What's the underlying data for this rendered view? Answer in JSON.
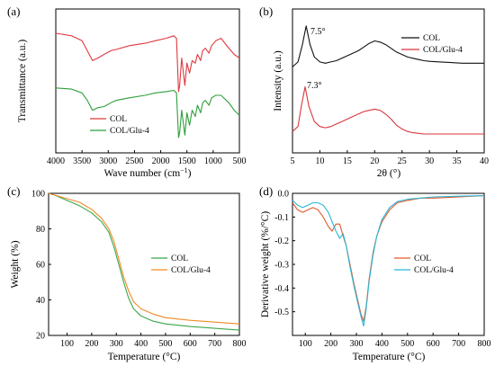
{
  "chart_data": [
    {
      "panel": "(a)",
      "type": "line",
      "xlabel": "Wave number (cm⁻¹)",
      "xlabel_base": "Wave number (cm",
      "xlabel_sup": "−1",
      "xlabel_close": ")",
      "ylabel": "Transmittance (a.u.)",
      "xlim": [
        4000,
        500
      ],
      "xticks": [
        "4000",
        "3500",
        "3000",
        "2500",
        "2000",
        "1500",
        "1000",
        "500"
      ],
      "legend": "bottom-left",
      "series": [
        {
          "name": "COL",
          "color": "#e0393e",
          "x": [
            4000,
            3700,
            3500,
            3400,
            3300,
            3200,
            3080,
            2950,
            2850,
            2600,
            2300,
            2100,
            1900,
            1750,
            1700,
            1660,
            1640,
            1600,
            1540,
            1500,
            1450,
            1400,
            1340,
            1300,
            1240,
            1200,
            1150,
            1080,
            1030,
            950,
            850,
            700,
            600,
            500
          ],
          "y": [
            0.92,
            0.9,
            0.86,
            0.78,
            0.7,
            0.72,
            0.75,
            0.78,
            0.79,
            0.82,
            0.84,
            0.86,
            0.88,
            0.9,
            0.88,
            0.45,
            0.5,
            0.72,
            0.5,
            0.68,
            0.6,
            0.7,
            0.68,
            0.75,
            0.7,
            0.78,
            0.8,
            0.76,
            0.82,
            0.86,
            0.88,
            0.8,
            0.75,
            0.72
          ]
        },
        {
          "name": "COL/Glu-4",
          "color": "#2e9e3a",
          "x": [
            4000,
            3700,
            3500,
            3400,
            3300,
            3200,
            3080,
            2950,
            2850,
            2600,
            2300,
            2100,
            1900,
            1750,
            1700,
            1660,
            1640,
            1600,
            1540,
            1500,
            1450,
            1400,
            1340,
            1300,
            1240,
            1200,
            1150,
            1080,
            1030,
            950,
            850,
            700,
            600,
            500
          ],
          "y": [
            0.48,
            0.47,
            0.44,
            0.38,
            0.3,
            0.32,
            0.33,
            0.36,
            0.38,
            0.4,
            0.42,
            0.44,
            0.45,
            0.46,
            0.44,
            0.08,
            0.12,
            0.3,
            0.1,
            0.28,
            0.18,
            0.3,
            0.25,
            0.34,
            0.28,
            0.36,
            0.38,
            0.34,
            0.4,
            0.42,
            0.42,
            0.36,
            0.3,
            0.26
          ]
        }
      ]
    },
    {
      "panel": "(b)",
      "type": "line",
      "xlabel": "2θ (°)",
      "ylabel": "Intensity (a.u.)",
      "xlim": [
        5,
        40
      ],
      "xticks": [
        5,
        10,
        15,
        20,
        25,
        30,
        35,
        40
      ],
      "legend": "top-right",
      "annotations": [
        "7.5°",
        "7.3°"
      ],
      "series": [
        {
          "name": "COL",
          "color": "#111111",
          "x": [
            5,
            6,
            6.8,
            7.5,
            8.2,
            9,
            10,
            11,
            12,
            13,
            14,
            15,
            16,
            17,
            18,
            19,
            20,
            21,
            22,
            23,
            24,
            25,
            26,
            27,
            28,
            29,
            30,
            32,
            34,
            36,
            38,
            40
          ],
          "y": [
            0.62,
            0.66,
            0.8,
            0.95,
            0.8,
            0.7,
            0.66,
            0.65,
            0.66,
            0.67,
            0.69,
            0.71,
            0.73,
            0.75,
            0.78,
            0.81,
            0.83,
            0.82,
            0.8,
            0.77,
            0.74,
            0.72,
            0.7,
            0.69,
            0.68,
            0.67,
            0.665,
            0.66,
            0.655,
            0.65,
            0.65,
            0.65
          ]
        },
        {
          "name": "COL/Glu-4",
          "color": "#d9363a",
          "x": [
            5,
            6,
            6.6,
            7.3,
            8,
            9,
            10,
            11,
            12,
            13,
            14,
            15,
            16,
            17,
            18,
            19,
            20,
            21,
            22,
            23,
            24,
            25,
            26,
            27,
            28,
            29,
            30,
            32,
            34,
            36,
            38,
            40
          ],
          "y": [
            0.1,
            0.14,
            0.3,
            0.46,
            0.3,
            0.18,
            0.14,
            0.13,
            0.14,
            0.16,
            0.18,
            0.2,
            0.22,
            0.24,
            0.26,
            0.27,
            0.28,
            0.27,
            0.24,
            0.2,
            0.15,
            0.12,
            0.1,
            0.09,
            0.085,
            0.08,
            0.08,
            0.08,
            0.08,
            0.08,
            0.08,
            0.08
          ]
        }
      ]
    },
    {
      "panel": "(c)",
      "type": "line",
      "xlabel": "Temperature (°C)",
      "ylabel": "Weight (%)",
      "xlim": [
        25,
        800
      ],
      "ylim": [
        20,
        100
      ],
      "xticks": [
        100,
        200,
        300,
        400,
        500,
        600,
        700,
        800
      ],
      "yticks": [
        20,
        40,
        60,
        80,
        100
      ],
      "legend": "right",
      "series": [
        {
          "name": "COL",
          "color": "#3aa64a",
          "x": [
            25,
            50,
            100,
            150,
            200,
            240,
            270,
            290,
            310,
            330,
            350,
            370,
            400,
            450,
            500,
            600,
            700,
            800
          ],
          "y": [
            100,
            99,
            96,
            93,
            89,
            84,
            78,
            70,
            60,
            50,
            41,
            35,
            31,
            28,
            26.5,
            25,
            24,
            23
          ]
        },
        {
          "name": "COL/Glu-4",
          "color": "#f08a24",
          "x": [
            25,
            50,
            100,
            150,
            200,
            240,
            270,
            290,
            310,
            330,
            350,
            370,
            400,
            450,
            500,
            600,
            700,
            800
          ],
          "y": [
            100,
            99,
            97,
            95,
            91,
            86,
            80,
            73,
            63,
            53,
            45,
            39,
            35,
            32,
            30,
            28.5,
            27.5,
            26.5
          ]
        }
      ]
    },
    {
      "panel": "(d)",
      "type": "line",
      "xlabel": "Temperature (°C)",
      "ylabel": "Derivative weight (%/°C)",
      "xlim": [
        50,
        800
      ],
      "ylim": [
        -0.6,
        0.0
      ],
      "xticks": [
        100,
        200,
        300,
        400,
        500,
        600,
        700,
        800
      ],
      "yticks": [
        "0.0",
        "-0.1",
        "-0.2",
        "-0.3",
        "-0.4",
        "-0.5"
      ],
      "legend": "right",
      "series": [
        {
          "name": "COL",
          "color": "#e35a2c",
          "x": [
            50,
            70,
            90,
            110,
            130,
            150,
            170,
            190,
            205,
            220,
            235,
            248,
            260,
            275,
            290,
            305,
            318,
            328,
            338,
            350,
            365,
            380,
            400,
            430,
            460,
            500,
            550,
            600,
            700,
            800
          ],
          "y": [
            -0.04,
            -0.07,
            -0.08,
            -0.07,
            -0.06,
            -0.07,
            -0.1,
            -0.14,
            -0.16,
            -0.13,
            -0.13,
            -0.18,
            -0.22,
            -0.3,
            -0.38,
            -0.45,
            -0.51,
            -0.54,
            -0.48,
            -0.36,
            -0.25,
            -0.18,
            -0.12,
            -0.07,
            -0.04,
            -0.03,
            -0.02,
            -0.02,
            -0.015,
            -0.01
          ]
        },
        {
          "name": "COL/Glu-4",
          "color": "#29b6d6",
          "x": [
            50,
            70,
            90,
            110,
            130,
            150,
            170,
            190,
            205,
            220,
            235,
            248,
            260,
            275,
            290,
            305,
            318,
            328,
            338,
            350,
            365,
            380,
            400,
            430,
            460,
            500,
            550,
            600,
            700,
            800
          ],
          "y": [
            -0.03,
            -0.05,
            -0.06,
            -0.05,
            -0.04,
            -0.04,
            -0.05,
            -0.08,
            -0.12,
            -0.16,
            -0.19,
            -0.17,
            -0.22,
            -0.31,
            -0.39,
            -0.46,
            -0.52,
            -0.56,
            -0.49,
            -0.37,
            -0.26,
            -0.18,
            -0.11,
            -0.06,
            -0.035,
            -0.025,
            -0.02,
            -0.015,
            -0.012,
            -0.01
          ]
        }
      ]
    }
  ]
}
